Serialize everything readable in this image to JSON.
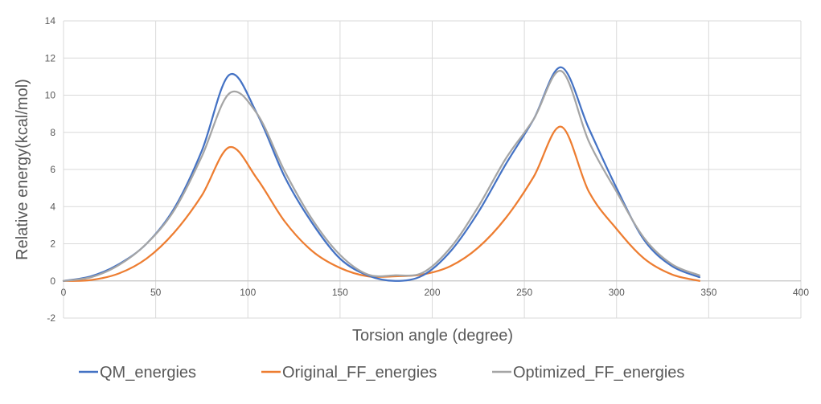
{
  "chart_data": {
    "type": "line",
    "title": "",
    "xlabel": "Torsion angle (degree)",
    "ylabel": "Relative energy(kcal/mol)",
    "xlim": [
      0,
      400
    ],
    "ylim": [
      -2,
      14
    ],
    "xticks": [
      "0",
      "50",
      "100",
      "150",
      "200",
      "250",
      "300",
      "350",
      "400"
    ],
    "yticks": [
      "-2",
      "0",
      "2",
      "4",
      "6",
      "8",
      "10",
      "12",
      "14"
    ],
    "grid": true,
    "legend_position": "bottom",
    "series": [
      {
        "name": "QM_energies",
        "color": "#4472C4",
        "x": [
          0,
          15,
          30,
          45,
          60,
          75,
          90,
          105,
          120,
          135,
          150,
          165,
          180,
          195,
          210,
          225,
          240,
          255,
          270,
          285,
          300,
          315,
          330,
          345
        ],
        "y": [
          0,
          0.25,
          0.9,
          2.0,
          3.9,
          7.0,
          11.1,
          9.0,
          5.6,
          3.1,
          1.2,
          0.3,
          0.0,
          0.3,
          1.6,
          3.7,
          6.3,
          8.7,
          11.5,
          8.2,
          5.0,
          2.2,
          0.8,
          0.2
        ]
      },
      {
        "name": "Original_FF_energies",
        "color": "#ED7D31",
        "x": [
          0,
          15,
          30,
          45,
          60,
          75,
          90,
          105,
          120,
          135,
          150,
          165,
          180,
          195,
          210,
          225,
          240,
          255,
          270,
          285,
          300,
          315,
          330,
          345
        ],
        "y": [
          0,
          0.05,
          0.4,
          1.2,
          2.6,
          4.6,
          7.2,
          5.5,
          3.2,
          1.6,
          0.7,
          0.25,
          0.25,
          0.35,
          0.8,
          1.8,
          3.4,
          5.6,
          8.3,
          4.8,
          2.8,
          1.2,
          0.35,
          0.0
        ]
      },
      {
        "name": "Optimized_FF_energies",
        "color": "#A5A5A5",
        "x": [
          0,
          15,
          30,
          45,
          60,
          75,
          90,
          105,
          120,
          135,
          150,
          165,
          180,
          195,
          210,
          225,
          240,
          255,
          270,
          285,
          300,
          315,
          330,
          345
        ],
        "y": [
          0,
          0.2,
          0.85,
          2.0,
          3.8,
          6.7,
          10.1,
          9.0,
          5.9,
          3.3,
          1.4,
          0.35,
          0.3,
          0.45,
          1.8,
          4.0,
          6.6,
          8.7,
          11.3,
          7.5,
          4.8,
          2.3,
          0.9,
          0.3
        ]
      }
    ]
  }
}
